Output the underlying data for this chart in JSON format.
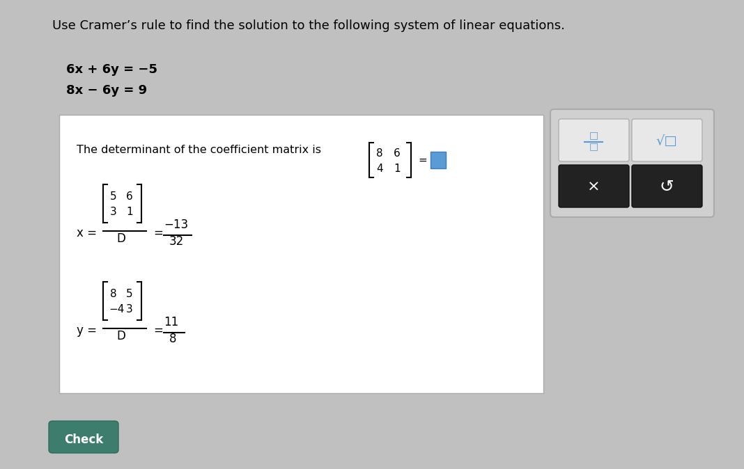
{
  "bg_color": "#c8c8c8",
  "title_text": "Use Cramer’s rule to find the solution to the following system of linear equations.",
  "eq1": "6x + 6y = −5",
  "eq2": "8x − 6y = 9",
  "det_label": "The determinant of the coefficient matrix is  D =",
  "det_matrix": "| 8  6 |\n| 4  1 |",
  "det_equals": "= □",
  "x_formula_num": "| 5  6 |\n| 3  1 |",
  "x_formula": "x = —————  =  −13",
  "x_result": "−13 / 32",
  "y_formula_num": "| 8  5 |\n|−4  3 |",
  "y_result": "11 / 8",
  "check_btn": "Check",
  "panel_bg": "#d8d8d8",
  "box_bg": "#f0f0f0",
  "dark_btn": "#2a2a2a",
  "light_btn": "#e0e0e0"
}
